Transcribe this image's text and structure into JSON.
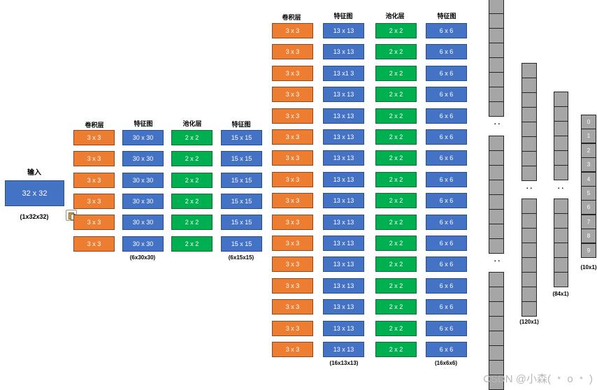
{
  "input": {
    "title": "输入",
    "box": "32 x 32",
    "caption": "(1x32x32)",
    "paste_icon": "clipboard-icon"
  },
  "stage1": {
    "headers": [
      "卷积层",
      "特征图",
      "池化层",
      "特征图"
    ],
    "conv": [
      "3 x 3",
      "3 x 3",
      "3 x 3",
      "3 x 3",
      "3 x 3",
      "3 x 3"
    ],
    "fmap": [
      "30 x 30",
      "30 x 30",
      "30 x 30",
      "30 x 30",
      "30 x 30",
      "30 x 30"
    ],
    "pool": [
      "2 x 2",
      "2 x 2",
      "2 x 2",
      "2 x 2",
      "2 x 2",
      "2 x 2"
    ],
    "pmap": [
      "15 x 15",
      "15 x 15",
      "15 x 15",
      "15 x 15",
      "15 x 15",
      "15 x 15"
    ],
    "caption_fmap": "(6x30x30)",
    "caption_pmap": "(6x15x15)"
  },
  "stage2": {
    "headers": [
      "卷积层",
      "特征图",
      "池化层",
      "特征图"
    ],
    "conv": [
      "3 x 3",
      "3 x 3",
      "3 x 3",
      "3 x 3",
      "3 x 3",
      "3 x 3",
      "3 x 3",
      "3 x 3",
      "3 x 3",
      "3 x 3",
      "3 x 3",
      "3 x 3",
      "3 x 3",
      "3 x 3",
      "3 x 3",
      "3 x 3"
    ],
    "fmap": [
      "13 x 13",
      "13 x 13",
      "13 x1 3",
      "13 x 13",
      "13 x 13",
      "13 x 13",
      "13 x 13",
      "13 x 13",
      "13 x 13",
      "13 x 13",
      "13 x 13",
      "13 x 13",
      "13 x 13",
      "13 x 13",
      "13 x 13",
      "13 x 13"
    ],
    "pool": [
      "2 x 2",
      "2 x 2",
      "2 x 2",
      "2 x 2",
      "2 x 2",
      "2 x 2",
      "2 x 2",
      "2 x 2",
      "2 x 2",
      "2 x 2",
      "2 x 2",
      "2 x 2",
      "2 x 2",
      "2 x 2",
      "2 x 2",
      "2 x 2"
    ],
    "pmap": [
      "6 x 6",
      "6 x 6",
      "6 x 6",
      "6 x 6",
      "6 x 6",
      "6 x 6",
      "6 x 6",
      "6 x 6",
      "6 x 6",
      "6 x 6",
      "6 x 6",
      "6 x 6",
      "6 x 6",
      "6 x 6",
      "6 x 6",
      "6 x 6"
    ],
    "caption_fmap": "(16x13x13)",
    "caption_pmap": "(16x6x6)"
  },
  "fc": {
    "dots": ". .",
    "fc1_caption": "(120x1)",
    "fc2_caption": "(84x1)",
    "output_caption": "(10x1)",
    "outputs": [
      "0",
      "1",
      "2",
      "3",
      "4",
      "5",
      "6",
      "7",
      "8",
      "9"
    ]
  },
  "watermark": "CSDN @小森( ﹡ o ﹡ )"
}
